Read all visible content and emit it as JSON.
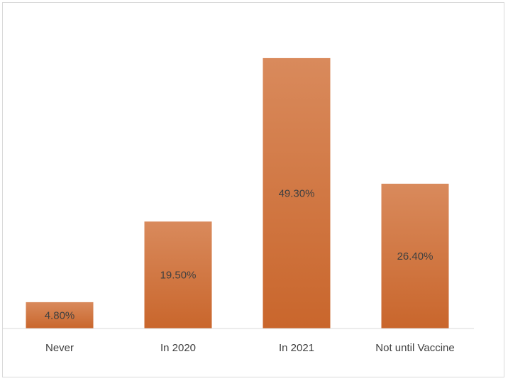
{
  "chart_data": {
    "type": "bar",
    "categories": [
      "Never",
      "In 2020",
      "In 2021",
      "Not until Vaccine"
    ],
    "values": [
      4.8,
      19.5,
      49.3,
      26.4
    ],
    "value_labels": [
      "4.80%",
      "19.50%",
      "49.30%",
      "26.40%"
    ],
    "title": "",
    "xlabel": "",
    "ylabel": "",
    "ylim": [
      0,
      50
    ],
    "grid": false,
    "legend": "none",
    "bar_color_top": "#d98a5c",
    "bar_color_bottom": "#c9662c",
    "axis_color": "#d9d9d9",
    "label_color": "#404040"
  }
}
